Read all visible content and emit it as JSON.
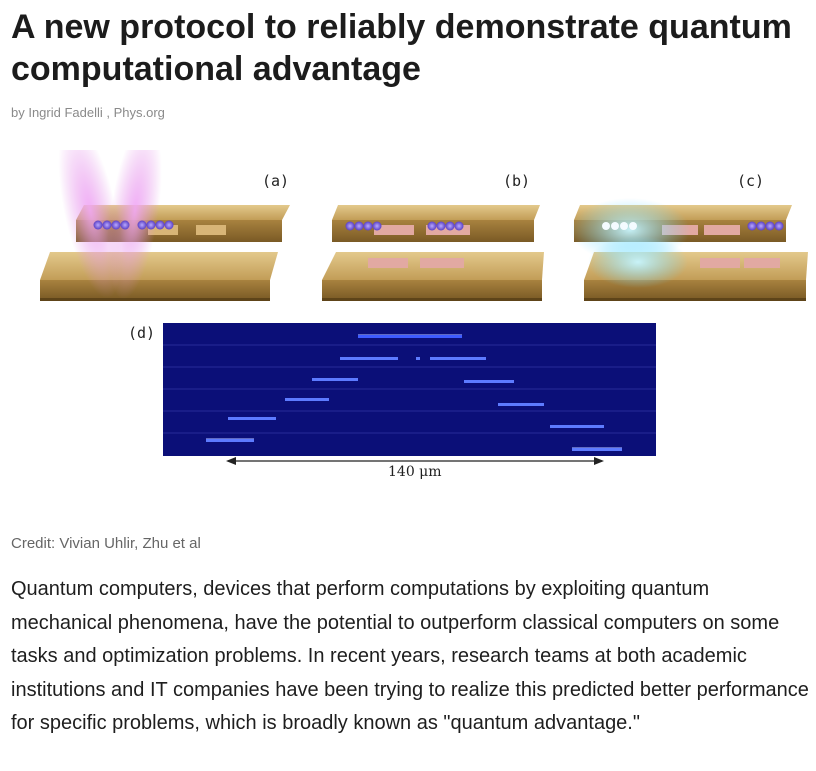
{
  "article": {
    "headline": "A new protocol to reliably demonstrate quantum computational advantage",
    "byline": "by Ingrid Fadelli , Phys.org",
    "figure": {
      "panel_labels": {
        "a": "(a)",
        "b": "(b)",
        "c": "(c)",
        "d": "(d)"
      },
      "scale_label": "140 μm",
      "colors": {
        "gold": "#c9a865",
        "gold_dark": "#8f6f33",
        "ion_purple": "#6a4fd0",
        "laser_magenta": "#e08fe6",
        "laser_cyan": "#7fe3ff",
        "panel_d_bg": "#0b0f78",
        "ion_blue": "#3e5cff"
      }
    },
    "credit": "Credit: Vivian Uhlir, Zhu et al",
    "body": "Quantum computers, devices that perform computations by exploiting quantum mechanical phenomena, have the potential to outperform classical computers on some tasks and optimization problems. In recent years, research teams at both academic institutions and IT companies have been trying to realize this predicted better performance for specific problems, which is broadly known as \"quantum advantage.\""
  }
}
